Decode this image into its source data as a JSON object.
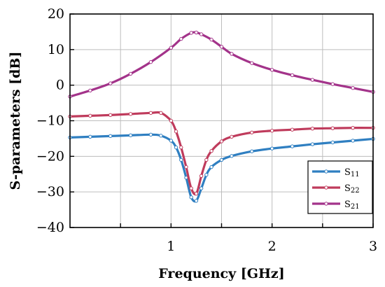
{
  "chart_data": {
    "type": "line",
    "xlabel": "Frequency [GHz]",
    "ylabel": "S-parameters [dB]",
    "xlim": [
      0,
      3
    ],
    "ylim": [
      -40,
      20
    ],
    "xticks": [
      1,
      2,
      3
    ],
    "yticks": [
      -40,
      -30,
      -20,
      -10,
      0,
      10,
      20
    ],
    "grid": true,
    "legend_position": "bottom-right",
    "series": [
      {
        "name": "S11",
        "name_base": "S",
        "name_sub": "11",
        "color": "#2f7fc1",
        "x": [
          0,
          0.2,
          0.4,
          0.6,
          0.8,
          0.9,
          1.0,
          1.05,
          1.1,
          1.15,
          1.2,
          1.25,
          1.3,
          1.35,
          1.4,
          1.5,
          1.6,
          1.8,
          2.0,
          2.2,
          2.4,
          2.6,
          2.8,
          3.0
        ],
        "y": [
          -14.7,
          -14.5,
          -14.3,
          -14.1,
          -13.9,
          -14.2,
          -15.6,
          -17.5,
          -21.0,
          -26.0,
          -31.5,
          -32.5,
          -29.0,
          -25.2,
          -23.0,
          -21.0,
          -19.9,
          -18.6,
          -17.8,
          -17.2,
          -16.6,
          -16.1,
          -15.6,
          -15.1
        ]
      },
      {
        "name": "S22",
        "name_base": "S",
        "name_sub": "22",
        "color": "#bf3b5c",
        "x": [
          0,
          0.2,
          0.4,
          0.6,
          0.8,
          0.9,
          1.0,
          1.05,
          1.1,
          1.15,
          1.2,
          1.25,
          1.3,
          1.35,
          1.4,
          1.5,
          1.6,
          1.8,
          2.0,
          2.2,
          2.4,
          2.6,
          2.8,
          3.0
        ],
        "y": [
          -8.8,
          -8.6,
          -8.4,
          -8.1,
          -7.8,
          -7.8,
          -10.0,
          -13.0,
          -17.5,
          -23.0,
          -29.0,
          -30.5,
          -25.5,
          -21.0,
          -18.5,
          -15.8,
          -14.5,
          -13.3,
          -12.8,
          -12.5,
          -12.2,
          -12.1,
          -12.0,
          -12.0
        ]
      },
      {
        "name": "S21",
        "name_base": "S",
        "name_sub": "21",
        "color": "#a3338a",
        "x": [
          0,
          0.2,
          0.4,
          0.6,
          0.8,
          1.0,
          1.1,
          1.2,
          1.25,
          1.3,
          1.4,
          1.5,
          1.6,
          1.8,
          2.0,
          2.2,
          2.4,
          2.6,
          2.8,
          3.0
        ],
        "y": [
          -3.2,
          -1.5,
          0.5,
          3.2,
          6.5,
          10.5,
          13.0,
          14.7,
          14.8,
          14.3,
          12.8,
          10.8,
          8.8,
          6.2,
          4.3,
          2.8,
          1.5,
          0.3,
          -0.8,
          -1.9
        ]
      }
    ],
    "legend_order": [
      0,
      1,
      2
    ],
    "legend_display_order": [
      "S11",
      "S22",
      "S21"
    ]
  }
}
